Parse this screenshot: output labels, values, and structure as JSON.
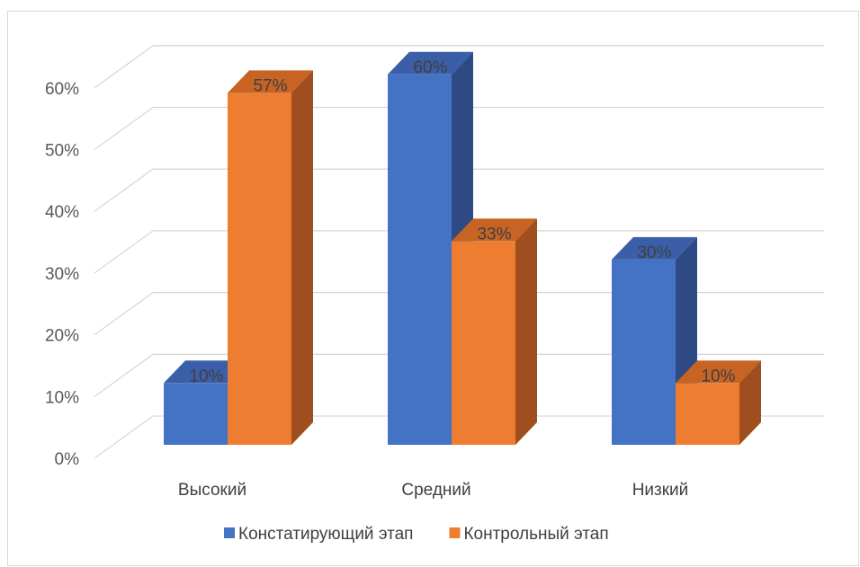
{
  "chart_data": {
    "type": "bar",
    "title": "",
    "xlabel": "",
    "ylabel": "",
    "categories": [
      "Высокий",
      "Средний",
      "Низкий"
    ],
    "series": [
      {
        "name": "Констатирующий этап",
        "values": [
          10,
          60,
          30
        ],
        "labels": [
          "10%",
          "60%",
          "30%"
        ],
        "color": "#4472c4",
        "side_color": "#2e4a84",
        "top_color": "#3a5fa8"
      },
      {
        "name": "Контрольный этап",
        "values": [
          57,
          33,
          10
        ],
        "labels": [
          "57%",
          "33%",
          "10%"
        ],
        "color": "#ed7d31",
        "side_color": "#9e4f1d",
        "top_color": "#c76424"
      }
    ],
    "ylim": [
      0,
      60
    ],
    "yticks": [
      "0%",
      "10%",
      "20%",
      "30%",
      "40%",
      "50%",
      "60%"
    ],
    "grid": true,
    "legend": "bottom-center"
  }
}
